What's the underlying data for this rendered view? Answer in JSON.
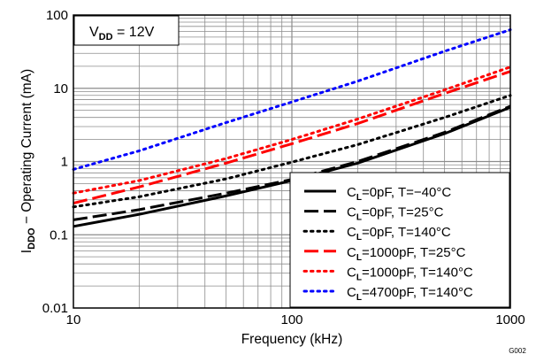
{
  "chart_data": {
    "type": "line",
    "xscale": "log",
    "yscale": "log",
    "xlim": [
      10,
      1000
    ],
    "ylim": [
      0.01,
      100
    ],
    "grid": true,
    "xlabel": "Frequency (kHz)",
    "ylabel_main": "I",
    "ylabel_sub": "DDO",
    "ylabel_rest": " − Operating Current (mA)",
    "x_ticks": [
      {
        "value": 10,
        "label": "10"
      },
      {
        "value": 100,
        "label": "100"
      },
      {
        "value": 1000,
        "label": "1000"
      }
    ],
    "y_ticks": [
      {
        "value": 0.01,
        "label": "0.01"
      },
      {
        "value": 0.1,
        "label": "0.1"
      },
      {
        "value": 1,
        "label": "1"
      },
      {
        "value": 10,
        "label": "10"
      },
      {
        "value": 100,
        "label": "100"
      }
    ],
    "annotation": {
      "main": "V",
      "sub": "DD",
      "rest": " = 12V"
    },
    "figure_id": "G002",
    "legend_position": "bottom-right",
    "series": [
      {
        "legend": {
          "main": "C",
          "sub": "L",
          "rest": "=0pF, T=−40°C"
        },
        "color": "#000000",
        "style": "solid",
        "x": [
          10,
          20,
          50,
          100,
          200,
          500,
          1000
        ],
        "y": [
          0.13,
          0.19,
          0.34,
          0.55,
          0.95,
          2.4,
          5.5
        ]
      },
      {
        "legend": {
          "main": "C",
          "sub": "L",
          "rest": "=0pF, T=25°C"
        },
        "color": "#000000",
        "style": "dash",
        "x": [
          10,
          20,
          50,
          100,
          200,
          500,
          1000
        ],
        "y": [
          0.16,
          0.22,
          0.37,
          0.57,
          1.0,
          2.5,
          5.7
        ]
      },
      {
        "legend": {
          "main": "C",
          "sub": "L",
          "rest": "=0pF, T=140°C"
        },
        "color": "#000000",
        "style": "dot",
        "x": [
          10,
          20,
          50,
          100,
          200,
          500,
          1000
        ],
        "y": [
          0.24,
          0.33,
          0.58,
          0.98,
          1.7,
          4.0,
          8.0
        ]
      },
      {
        "legend": {
          "main": "C",
          "sub": "L",
          "rest": "=1000pF, T=25°C"
        },
        "color": "#ff0000",
        "style": "dash",
        "x": [
          10,
          20,
          50,
          100,
          200,
          500,
          1000
        ],
        "y": [
          0.27,
          0.45,
          0.95,
          1.75,
          3.3,
          8.5,
          17
        ]
      },
      {
        "legend": {
          "main": "C",
          "sub": "L",
          "rest": "=1000pF, T=140°C"
        },
        "color": "#ff0000",
        "style": "dot",
        "x": [
          10,
          20,
          50,
          100,
          200,
          500,
          1000
        ],
        "y": [
          0.37,
          0.55,
          1.1,
          2.0,
          3.8,
          9.5,
          19.5
        ]
      },
      {
        "legend": {
          "main": "C",
          "sub": "L",
          "rest": "=4700pF, T=140°C"
        },
        "color": "#0000ff",
        "style": "dot",
        "x": [
          10,
          20,
          50,
          100,
          200,
          500,
          1000
        ],
        "y": [
          0.78,
          1.4,
          3.4,
          6.5,
          12.5,
          32,
          63
        ]
      }
    ]
  }
}
